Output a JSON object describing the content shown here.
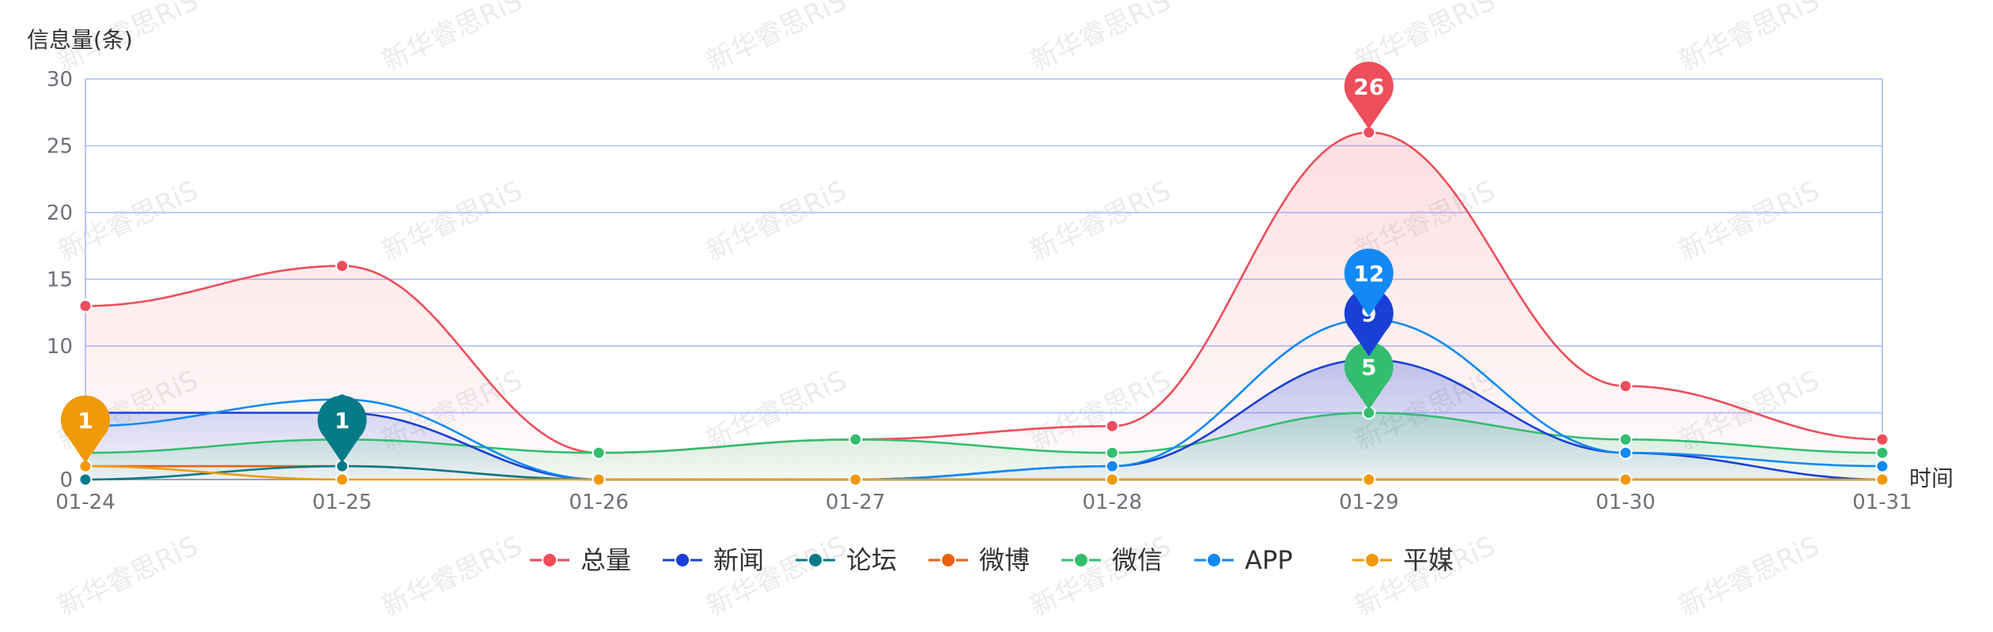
{
  "chart_data": {
    "type": "line",
    "smooth": true,
    "area_fill_series": [
      "总量",
      "新闻",
      "微信"
    ],
    "ylabel": "信息量(条)",
    "xlabel": "时间",
    "ylim": [
      0,
      30
    ],
    "yticks": [
      0,
      5,
      10,
      15,
      20,
      25,
      30
    ],
    "ytick_labels": [
      "0",
      "",
      "10",
      "15",
      "20",
      "25",
      "30"
    ],
    "categories": [
      "01-24",
      "01-25",
      "01-26",
      "01-27",
      "01-28",
      "01-29",
      "01-30",
      "01-31"
    ],
    "grid": true,
    "legend_position": "bottom",
    "watermark": "新华睿思RiS",
    "series": [
      {
        "name": "总量",
        "color": "#ee4d5a",
        "values": [
          13,
          16,
          2,
          3,
          4,
          26,
          7,
          3
        ]
      },
      {
        "name": "新闻",
        "color": "#1a3fd6",
        "values": [
          5,
          5,
          0,
          0,
          1,
          9,
          2,
          0
        ]
      },
      {
        "name": "论坛",
        "color": "#047b87",
        "values": [
          0,
          1,
          0,
          0,
          0,
          0,
          0,
          0
        ]
      },
      {
        "name": "微博",
        "color": "#e9620f",
        "values": [
          1,
          1,
          0,
          0,
          0,
          0,
          0,
          0
        ]
      },
      {
        "name": "微信",
        "color": "#35bd6f",
        "values": [
          2,
          3,
          2,
          3,
          2,
          5,
          3,
          2
        ]
      },
      {
        "name": "APP",
        "color": "#1289f4",
        "values": [
          4,
          6,
          0,
          0,
          1,
          12,
          2,
          1
        ]
      },
      {
        "name": "平媒",
        "color": "#f09a09",
        "values": [
          1,
          0,
          0,
          0,
          0,
          0,
          0,
          0
        ]
      }
    ],
    "max_markers": [
      {
        "series": "总量",
        "category": "01-29",
        "value": "26"
      },
      {
        "series": "新闻",
        "category": "01-29",
        "value": "9"
      },
      {
        "series": "论坛",
        "category": "01-25",
        "value": "1"
      },
      {
        "series": "微信",
        "category": "01-29",
        "value": "5"
      },
      {
        "series": "APP",
        "category": "01-29",
        "value": "12"
      },
      {
        "series": "平媒",
        "category": "01-24",
        "value": "1"
      }
    ]
  }
}
